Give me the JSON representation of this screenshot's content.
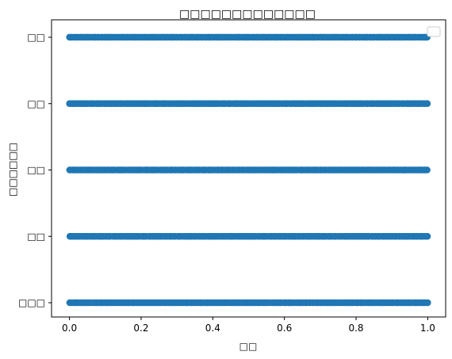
{
  "chart_data": {
    "type": "scatter",
    "title": "□□□□□□□□□□□□□",
    "xlabel": "□□",
    "ylabel": "□□□□□□",
    "xlim": [
      -0.05,
      1.05
    ],
    "x_ticks": [
      0.0,
      0.2,
      0.4,
      0.6,
      0.8,
      1.0
    ],
    "x_tick_labels": [
      "0.0",
      "0.2",
      "0.4",
      "0.6",
      "0.8",
      "1.0"
    ],
    "categories": [
      "□□□",
      "□□",
      "□□",
      "□□",
      "□□"
    ],
    "x_range_per_category": [
      0.0,
      1.0
    ],
    "legend": {
      "position": "upper-right",
      "entries": []
    },
    "grid": false,
    "color": "#1f77b4"
  }
}
